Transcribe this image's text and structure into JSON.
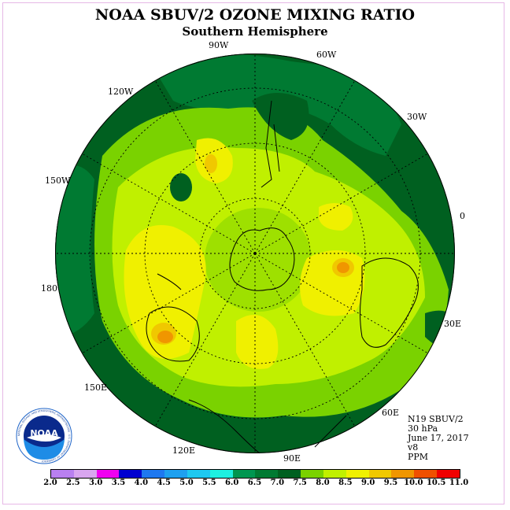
{
  "title": "NOAA SBUV/2 OZONE MIXING RATIO",
  "subtitle": "Southern Hemisphere",
  "meridian_labels": {
    "lon_90w": "90W",
    "lon_60w": "60W",
    "lon_120w": "120W",
    "lon_30w": "30W",
    "lon_150w": "150W",
    "lon_0": "0",
    "lon_180": "180",
    "lon_30e": "30E",
    "lon_150e": "150E",
    "lon_60e": "60E",
    "lon_120e": "120E",
    "lon_90e": "90E"
  },
  "info": {
    "satellite": "N19 SBUV/2",
    "level": "30 hPa",
    "date": "June 17, 2017",
    "version": "v8",
    "units": "PPM"
  },
  "logo": {
    "text": "NOAA",
    "ring_text": "NATIONAL OCEANIC AND ATMOSPHERIC ADMINISTRATION · U.S. DEPARTMENT OF COMMERCE"
  },
  "colorbar": {
    "ticks": [
      "2.0",
      "2.5",
      "3.0",
      "3.5",
      "4.0",
      "4.5",
      "5.0",
      "5.5",
      "6.0",
      "6.5",
      "7.0",
      "7.5",
      "8.0",
      "8.5",
      "9.0",
      "9.5",
      "10.0",
      "10.5",
      "11.0"
    ],
    "colors": [
      "#b980f0",
      "#d9a6f0",
      "#f000f0",
      "#0000d0",
      "#1e78f0",
      "#1ea0f0",
      "#1ec8f0",
      "#1ef0e0",
      "#009650",
      "#007a32",
      "#006020",
      "#7ad200",
      "#c0f000",
      "#f0f000",
      "#f0c800",
      "#f09600",
      "#f05000",
      "#f00000",
      "#8c5a32"
    ]
  }
}
